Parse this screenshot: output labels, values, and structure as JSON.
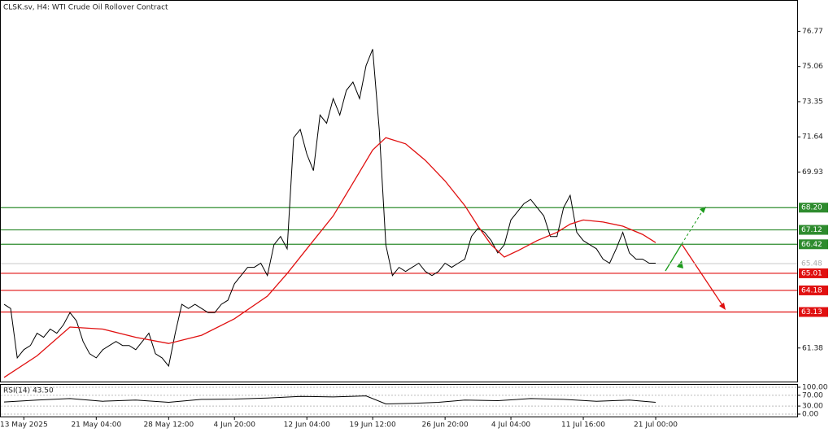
{
  "chart_data": [
    {
      "type": "line",
      "title": "CLSK.sv, H4:  WTI Crude Oil Rollover Contract",
      "x": [
        0,
        1,
        2,
        3,
        4,
        5,
        6,
        7,
        8,
        9,
        10,
        11,
        12,
        13,
        14,
        15,
        16,
        17,
        18,
        19,
        20,
        21,
        22,
        23,
        24,
        25,
        26,
        27,
        28,
        29,
        30,
        31,
        32,
        33,
        34,
        35,
        36,
        37,
        38,
        39,
        40,
        41,
        42,
        43,
        44,
        45,
        46,
        47,
        48,
        49,
        50,
        51,
        52,
        53,
        54,
        55,
        56,
        57,
        58,
        59,
        60,
        61,
        62,
        63,
        64,
        65,
        66,
        67,
        68,
        69,
        70,
        71,
        72,
        73,
        74,
        75,
        76,
        77,
        78,
        79,
        80,
        81,
        82,
        83,
        84,
        85,
        86,
        87,
        88,
        89,
        90,
        91,
        92,
        93,
        94,
        95,
        96,
        97,
        98,
        99
      ],
      "series": [
        {
          "color": "#000000",
          "values": [
            63.5,
            63.3,
            60.9,
            61.3,
            61.5,
            62.1,
            61.9,
            62.3,
            62.1,
            62.5,
            63.1,
            62.7,
            61.7,
            61.1,
            60.9,
            61.3,
            61.5,
            61.7,
            61.5,
            61.5,
            61.3,
            61.7,
            62.1,
            61.1,
            60.9,
            60.5,
            62.1,
            63.5,
            63.3,
            63.5,
            63.3,
            63.1,
            63.1,
            63.5,
            63.7,
            64.5,
            64.9,
            65.3,
            65.3,
            65.5,
            64.9,
            66.4,
            66.8,
            66.2,
            71.6,
            72.0,
            70.8,
            70.0,
            72.7,
            72.3,
            73.5,
            72.7,
            73.9,
            74.3,
            73.5,
            75.1,
            75.9,
            72.0,
            66.4,
            64.9,
            65.3,
            65.1,
            65.3,
            65.5,
            65.1,
            64.9,
            65.1,
            65.5,
            65.3,
            65.5,
            65.7,
            66.8,
            67.2,
            67.0,
            66.6,
            66.0,
            66.4,
            67.6,
            68.0,
            68.4,
            68.6,
            68.2,
            67.8,
            66.8,
            66.8,
            68.2,
            68.8,
            67.0,
            66.6,
            66.4,
            66.2,
            65.7,
            65.5,
            66.2,
            67.0,
            66.0,
            65.7,
            65.7,
            65.5,
            65.5
          ]
        },
        {
          "color": "#e01010",
          "x": [
            0,
            5,
            10,
            15,
            20,
            25,
            30,
            35,
            40,
            43,
            46,
            50,
            53,
            56,
            58,
            61,
            64,
            67,
            70,
            72,
            74,
            76,
            78,
            81,
            84,
            86,
            88,
            91,
            94,
            97,
            99
          ],
          "values": [
            59.95,
            61.0,
            62.4,
            62.3,
            61.9,
            61.6,
            62.0,
            62.8,
            63.9,
            65.0,
            66.2,
            67.8,
            69.4,
            71.0,
            71.6,
            71.3,
            70.5,
            69.5,
            68.3,
            67.3,
            66.4,
            65.8,
            66.1,
            66.6,
            67.0,
            67.4,
            67.6,
            67.5,
            67.3,
            66.9,
            66.5
          ]
        }
      ],
      "xlim": [
        -0.5,
        120.5
      ],
      "xticks": [
        {
          "value": 3,
          "label": "13 May 2025"
        },
        {
          "value": 14,
          "label": "21 May 04:00"
        },
        {
          "value": 25,
          "label": "28 May 12:00"
        },
        {
          "value": 35,
          "label": "4 Jun 20:00"
        },
        {
          "value": 46,
          "label": "12 Jun 04:00"
        },
        {
          "value": 56,
          "label": "19 Jun 12:00"
        },
        {
          "value": 67,
          "label": "26 Jun 20:00"
        },
        {
          "value": 77,
          "label": "4 Jul 04:00"
        },
        {
          "value": 88,
          "label": "11 Jul 16:00"
        },
        {
          "value": 99,
          "label": "21 Jul 00:00"
        }
      ],
      "ylim": [
        59.75,
        78.25
      ],
      "yticks": [
        76.77,
        75.06,
        73.35,
        71.64,
        69.93,
        61.38
      ],
      "levels": [
        {
          "value": 68.2,
          "label": "68.20",
          "color": "#2e8b2e"
        },
        {
          "value": 67.12,
          "label": "67.12",
          "color": "#2e8b2e"
        },
        {
          "value": 66.42,
          "label": "66.42",
          "color": "#2e8b2e"
        },
        {
          "value": 65.01,
          "label": "65.01",
          "color": "#e01010"
        },
        {
          "value": 64.18,
          "label": "64.18",
          "color": "#e01010"
        },
        {
          "value": 63.13,
          "label": "63.13",
          "color": "#e01010"
        }
      ],
      "current_price": {
        "value": 65.48,
        "label": "65.48"
      }
    },
    {
      "type": "line",
      "title": "RSI(14) 43.50",
      "x": [
        0,
        5,
        10,
        15,
        20,
        25,
        30,
        35,
        40,
        45,
        50,
        55,
        58,
        62,
        66,
        70,
        75,
        80,
        85,
        90,
        95,
        99
      ],
      "series": [
        {
          "color": "#000000",
          "values": [
            45,
            52,
            58,
            48,
            52,
            44,
            55,
            56,
            60,
            66,
            64,
            68,
            38,
            40,
            44,
            52,
            50,
            58,
            55,
            48,
            52,
            44
          ]
        }
      ],
      "xlim": [
        -0.5,
        120.5
      ],
      "ylim": [
        0,
        100
      ],
      "yticks": [
        {
          "value": 100,
          "label": "100.00"
        },
        {
          "value": 70,
          "label": "70.00"
        },
        {
          "value": 30,
          "label": "30.00"
        },
        {
          "value": 0,
          "label": "0.00"
        }
      ]
    }
  ]
}
